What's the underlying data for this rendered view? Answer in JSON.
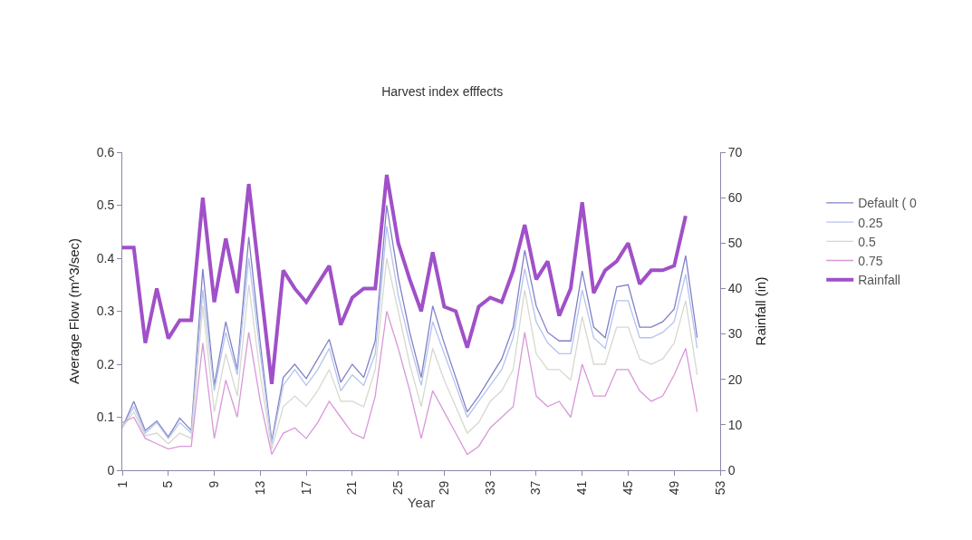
{
  "chart_data": {
    "type": "line",
    "title": "Harvest index efffects",
    "xlabel": "Year",
    "ylabel": "Average Flow (m^3/sec)",
    "y2label": "Rainfall (in)",
    "x": [
      1,
      2,
      3,
      4,
      5,
      6,
      7,
      8,
      9,
      10,
      11,
      12,
      13,
      14,
      15,
      16,
      17,
      18,
      19,
      20,
      21,
      22,
      23,
      24,
      25,
      26,
      27,
      28,
      29,
      30,
      31,
      32,
      33,
      34,
      35,
      36,
      37,
      38,
      39,
      40,
      41,
      42,
      43,
      44,
      45,
      46,
      47,
      48,
      49,
      50,
      51
    ],
    "series": [
      {
        "name": "Default ( 0",
        "color": "#8080c8",
        "values": [
          0.08,
          0.13,
          0.075,
          0.093,
          0.063,
          0.098,
          0.075,
          0.38,
          0.16,
          0.28,
          0.19,
          0.44,
          0.24,
          0.055,
          0.175,
          0.2,
          0.173,
          0.21,
          0.247,
          0.166,
          0.2,
          0.175,
          0.244,
          0.5,
          0.364,
          0.26,
          0.175,
          0.31,
          0.24,
          0.175,
          0.11,
          0.14,
          0.175,
          0.21,
          0.27,
          0.415,
          0.31,
          0.26,
          0.244,
          0.244,
          0.376,
          0.27,
          0.25,
          0.346,
          0.35,
          0.27,
          0.27,
          0.28,
          0.304,
          0.405,
          0.25
        ]
      },
      {
        "name": "0.25",
        "color": "#b4c4ec",
        "values": [
          0.08,
          0.12,
          0.07,
          0.09,
          0.06,
          0.09,
          0.07,
          0.34,
          0.15,
          0.26,
          0.18,
          0.4,
          0.22,
          0.05,
          0.16,
          0.19,
          0.16,
          0.19,
          0.23,
          0.15,
          0.18,
          0.16,
          0.22,
          0.46,
          0.33,
          0.24,
          0.16,
          0.28,
          0.22,
          0.16,
          0.1,
          0.13,
          0.16,
          0.19,
          0.25,
          0.38,
          0.28,
          0.24,
          0.22,
          0.22,
          0.34,
          0.25,
          0.23,
          0.32,
          0.32,
          0.25,
          0.25,
          0.26,
          0.28,
          0.37,
          0.23
        ]
      },
      {
        "name": "0.5",
        "color": "#d8d8d0",
        "values": [
          0.08,
          0.11,
          0.065,
          0.07,
          0.05,
          0.07,
          0.06,
          0.31,
          0.11,
          0.22,
          0.14,
          0.35,
          0.18,
          0.04,
          0.12,
          0.14,
          0.12,
          0.15,
          0.19,
          0.13,
          0.13,
          0.12,
          0.19,
          0.4,
          0.3,
          0.2,
          0.12,
          0.23,
          0.17,
          0.12,
          0.07,
          0.09,
          0.13,
          0.15,
          0.19,
          0.34,
          0.22,
          0.19,
          0.19,
          0.17,
          0.29,
          0.2,
          0.2,
          0.27,
          0.27,
          0.21,
          0.2,
          0.21,
          0.24,
          0.32,
          0.18
        ]
      },
      {
        "name": "0.75",
        "color": "#d898d8",
        "values": [
          0.09,
          0.1,
          0.06,
          0.05,
          0.04,
          0.045,
          0.045,
          0.24,
          0.06,
          0.17,
          0.1,
          0.26,
          0.13,
          0.03,
          0.07,
          0.08,
          0.06,
          0.09,
          0.13,
          0.1,
          0.07,
          0.06,
          0.14,
          0.3,
          0.23,
          0.15,
          0.06,
          0.15,
          0.11,
          0.07,
          0.03,
          0.045,
          0.08,
          0.1,
          0.12,
          0.26,
          0.14,
          0.12,
          0.13,
          0.1,
          0.2,
          0.14,
          0.14,
          0.19,
          0.19,
          0.15,
          0.13,
          0.14,
          0.18,
          0.23,
          0.11
        ]
      },
      {
        "name": "Rainfall",
        "color": "#a050c8",
        "axis": "y2",
        "x": [
          1,
          2,
          3,
          4,
          5,
          6,
          7,
          8,
          9,
          10,
          11,
          12,
          13,
          14,
          15,
          16,
          17,
          18,
          19,
          20,
          21,
          22,
          23,
          24,
          25,
          26,
          27,
          28,
          29,
          30,
          31,
          32,
          33,
          34,
          35,
          36,
          37,
          38,
          39,
          40,
          41,
          42,
          43,
          44,
          45,
          46,
          47,
          48,
          49,
          50
        ],
        "values": [
          49,
          49,
          28,
          40,
          29,
          33,
          33,
          60,
          37,
          51,
          39,
          63,
          41,
          19,
          44,
          40,
          37,
          41,
          45,
          32,
          38,
          40,
          40,
          65,
          50,
          42,
          35,
          48,
          36,
          35,
          27,
          36,
          38,
          37,
          44,
          54,
          42,
          46,
          34,
          40,
          59,
          39,
          44,
          46,
          50,
          41,
          44,
          44,
          45,
          56
        ]
      }
    ],
    "xlim": [
      1,
      53
    ],
    "xticks": [
      1,
      5,
      9,
      13,
      17,
      21,
      25,
      29,
      33,
      37,
      41,
      45,
      49,
      53
    ],
    "ylim": [
      0,
      0.6
    ],
    "yticks": [
      0,
      0.1,
      0.2,
      0.3,
      0.4,
      0.5,
      0.6
    ],
    "y2lim": [
      0,
      70
    ],
    "y2ticks": [
      0,
      10,
      20,
      30,
      40,
      50,
      60,
      70
    ],
    "legend": "right",
    "marker": "none",
    "line_style": "solid"
  }
}
